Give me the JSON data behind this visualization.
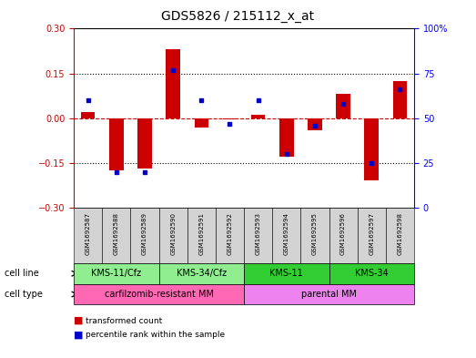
{
  "title": "GDS5826 / 215112_x_at",
  "samples": [
    "GSM1692587",
    "GSM1692588",
    "GSM1692589",
    "GSM1692590",
    "GSM1692591",
    "GSM1692592",
    "GSM1692593",
    "GSM1692594",
    "GSM1692595",
    "GSM1692596",
    "GSM1692597",
    "GSM1692598"
  ],
  "transformed_count": [
    0.02,
    -0.175,
    -0.17,
    0.23,
    -0.03,
    -0.005,
    0.01,
    -0.13,
    -0.04,
    0.08,
    -0.21,
    0.125
  ],
  "percentile_rank": [
    60,
    20,
    20,
    77,
    60,
    47,
    60,
    30,
    46,
    58,
    25,
    66
  ],
  "cell_line_groups": [
    {
      "label": "KMS-11/Cfz",
      "start": 0,
      "end": 2,
      "color": "#90EE90"
    },
    {
      "label": "KMS-34/Cfz",
      "start": 3,
      "end": 5,
      "color": "#90EE90"
    },
    {
      "label": "KMS-11",
      "start": 6,
      "end": 8,
      "color": "#32CD32"
    },
    {
      "label": "KMS-34",
      "start": 9,
      "end": 11,
      "color": "#32CD32"
    }
  ],
  "cell_type_groups": [
    {
      "label": "carfilzomib-resistant MM",
      "start": 0,
      "end": 5,
      "color": "#FF69B4"
    },
    {
      "label": "parental MM",
      "start": 6,
      "end": 11,
      "color": "#EE82EE"
    }
  ],
  "ylim_left": [
    -0.3,
    0.3
  ],
  "ylim_right": [
    0,
    100
  ],
  "yticks_left": [
    -0.3,
    -0.15,
    0,
    0.15,
    0.3
  ],
  "yticks_right": [
    0,
    25,
    50,
    75,
    100
  ],
  "bar_color": "#CC0000",
  "dot_color": "#0000CC",
  "hline_color": "#CC0000",
  "grid_color": "black",
  "bg_color": "white",
  "title_fontsize": 10,
  "tick_fontsize": 7,
  "label_fontsize": 7
}
